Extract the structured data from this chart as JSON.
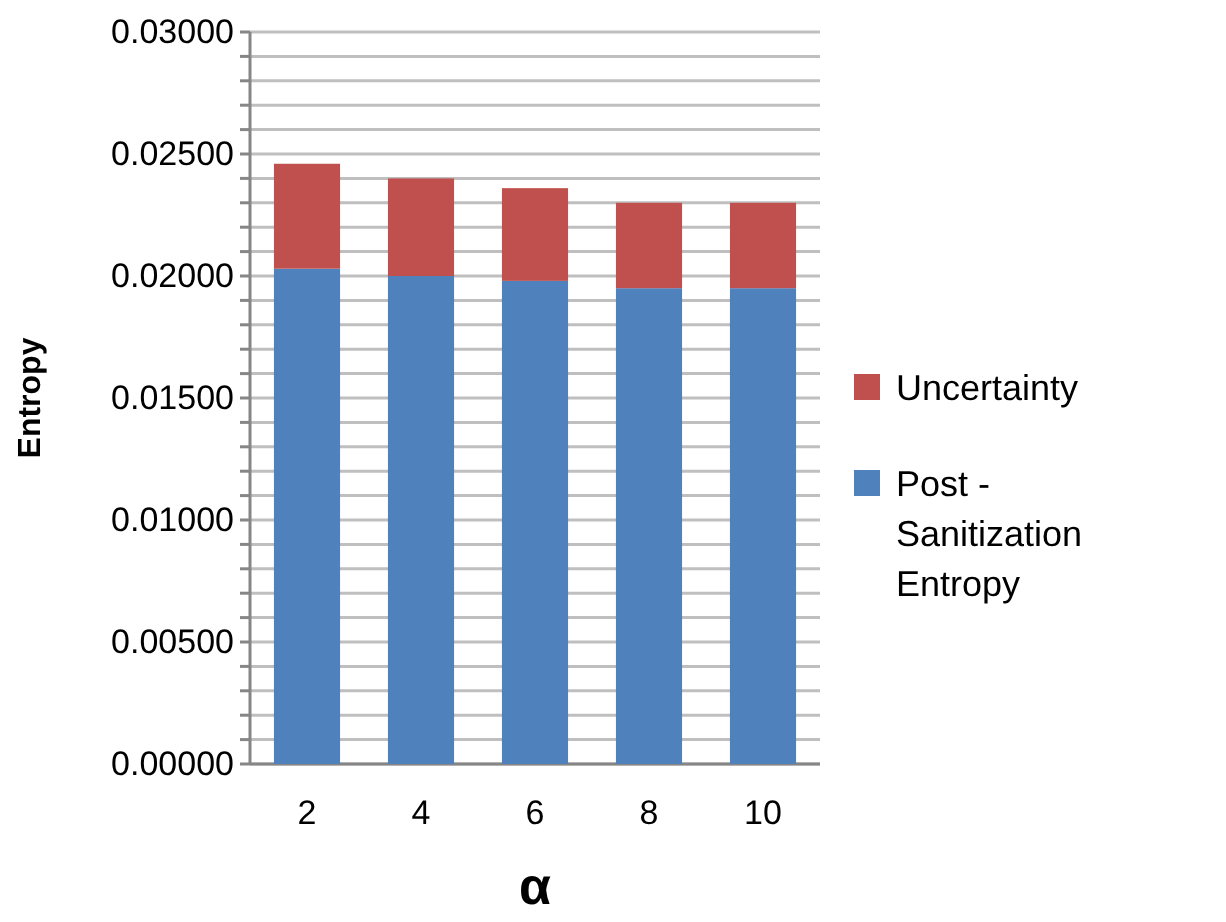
{
  "chart_data": {
    "type": "bar",
    "stacked": true,
    "xlabel": "α",
    "ylabel": "Entropy",
    "categories": [
      "2",
      "4",
      "6",
      "8",
      "10"
    ],
    "series": [
      {
        "name": "Post - Sanitization Entropy",
        "color": "#4f81bd",
        "values": [
          0.0203,
          0.02,
          0.0198,
          0.0195,
          0.0195
        ]
      },
      {
        "name": "Uncertainty",
        "color": "#c0504d",
        "values": [
          0.0043,
          0.004,
          0.0038,
          0.0035,
          0.0035
        ]
      }
    ],
    "ylim": [
      0,
      0.03
    ],
    "yticks": [
      {
        "value": 0,
        "label": "0.00000"
      },
      {
        "value": 0.001,
        "label": null
      },
      {
        "value": 0.002,
        "label": null
      },
      {
        "value": 0.003,
        "label": null
      },
      {
        "value": 0.004,
        "label": null
      },
      {
        "value": 0.005,
        "label": "0.00500"
      },
      {
        "value": 0.006,
        "label": null
      },
      {
        "value": 0.007,
        "label": null
      },
      {
        "value": 0.008,
        "label": null
      },
      {
        "value": 0.009,
        "label": null
      },
      {
        "value": 0.01,
        "label": "0.01000"
      },
      {
        "value": 0.011,
        "label": null
      },
      {
        "value": 0.012,
        "label": null
      },
      {
        "value": 0.013,
        "label": null
      },
      {
        "value": 0.014,
        "label": null
      },
      {
        "value": 0.015,
        "label": "0.01500"
      },
      {
        "value": 0.016,
        "label": null
      },
      {
        "value": 0.017,
        "label": null
      },
      {
        "value": 0.018,
        "label": null
      },
      {
        "value": 0.019,
        "label": null
      },
      {
        "value": 0.02,
        "label": "0.02000"
      },
      {
        "value": 0.021,
        "label": null
      },
      {
        "value": 0.022,
        "label": null
      },
      {
        "value": 0.023,
        "label": null
      },
      {
        "value": 0.024,
        "label": null
      },
      {
        "value": 0.025,
        "label": "0.02500"
      },
      {
        "value": 0.026,
        "label": null
      },
      {
        "value": 0.027,
        "label": null
      },
      {
        "value": 0.028,
        "label": null
      },
      {
        "value": 0.029,
        "label": null
      },
      {
        "value": 0.03,
        "label": "0.03000"
      }
    ],
    "grid": "y",
    "legend": "right"
  }
}
